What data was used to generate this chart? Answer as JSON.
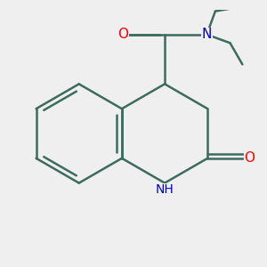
{
  "bg_color": "#efefef",
  "bond_color": "#3d6b5e",
  "bond_width": 1.8,
  "atom_colors": {
    "O": "#ff0000",
    "N": "#0000cc",
    "C": "#3d6b5e"
  },
  "font_size_atom": 10,
  "fig_width": 3.0,
  "fig_height": 3.0,
  "dpi": 100,
  "bl": 0.34
}
